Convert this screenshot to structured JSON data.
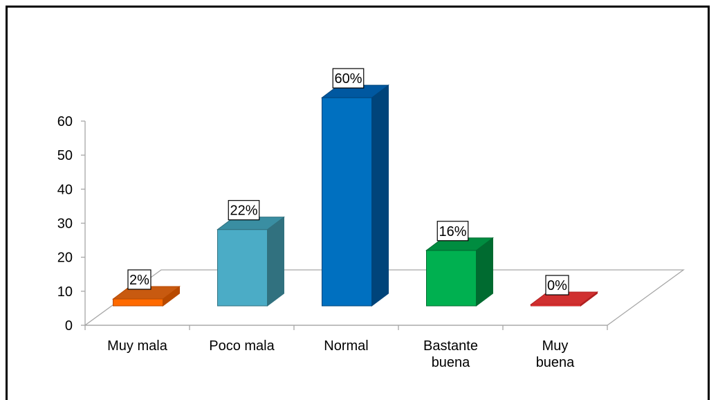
{
  "chart_data": {
    "type": "bar",
    "title": "",
    "xlabel": "",
    "ylabel": "",
    "ylim": [
      0,
      60
    ],
    "yticks": [
      0,
      10,
      20,
      30,
      40,
      50,
      60
    ],
    "categories": [
      [
        "Muy mala"
      ],
      [
        "Poco mala"
      ],
      [
        "Normal"
      ],
      [
        "Bastante",
        "buena"
      ],
      [
        "Muy",
        "buena"
      ]
    ],
    "values": [
      2,
      22,
      60,
      16,
      0
    ],
    "data_labels": [
      "2%",
      "22%",
      "60%",
      "16%",
      "0%"
    ],
    "colors": [
      "#ff6a00",
      "#4bacc6",
      "#0070c0",
      "#00b050",
      "#ff3b3b"
    ],
    "side_colors": [
      "#b84a00",
      "#31717f",
      "#00447a",
      "#006b30",
      "#b02020"
    ],
    "top_colors": [
      "#c85a10",
      "#3a8ea2",
      "#0058a0",
      "#008c40",
      "#d03030"
    ],
    "grid": false,
    "legend": "none"
  }
}
